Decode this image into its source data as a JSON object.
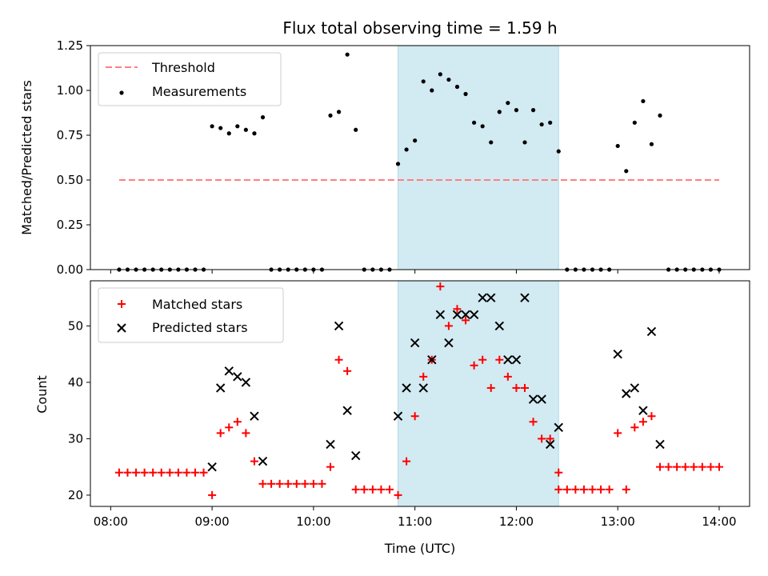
{
  "chart_data": [
    {
      "type": "scatter",
      "title": "Flux total observing time = 1.59 h",
      "xlabel": "",
      "ylabel": "Matched/Predicted stars",
      "ylim": [
        0,
        1.25
      ],
      "yticks": [
        "0.00",
        "0.25",
        "0.50",
        "0.75",
        "1.00",
        "1.25"
      ],
      "xticks": [
        "08:00",
        "09:00",
        "10:00",
        "11:00",
        "12:00",
        "13:00",
        "14:00"
      ],
      "x_range": [
        "07:48",
        "14:18"
      ],
      "highlight_span": [
        "10:50",
        "12:25"
      ],
      "highlight_color": "#add8e6",
      "legend_position": "upper left",
      "threshold": {
        "name": "Threshold",
        "value": 0.5,
        "x_start": "08:05",
        "x_end": "14:00",
        "color": "#ff7f7f"
      },
      "series": [
        {
          "name": "Measurements",
          "color": "#000000",
          "points": [
            [
              "08:05",
              0.0
            ],
            [
              "08:10",
              0.0
            ],
            [
              "08:15",
              0.0
            ],
            [
              "08:20",
              0.0
            ],
            [
              "08:25",
              0.0
            ],
            [
              "08:30",
              0.0
            ],
            [
              "08:35",
              0.0
            ],
            [
              "08:40",
              0.0
            ],
            [
              "08:45",
              0.0
            ],
            [
              "08:50",
              0.0
            ],
            [
              "08:55",
              0.0
            ],
            [
              "09:00",
              0.8
            ],
            [
              "09:05",
              0.79
            ],
            [
              "09:10",
              0.76
            ],
            [
              "09:15",
              0.8
            ],
            [
              "09:20",
              0.78
            ],
            [
              "09:25",
              0.76
            ],
            [
              "09:30",
              0.85
            ],
            [
              "09:35",
              0.0
            ],
            [
              "09:40",
              0.0
            ],
            [
              "09:45",
              0.0
            ],
            [
              "09:50",
              0.0
            ],
            [
              "09:55",
              0.0
            ],
            [
              "10:00",
              0.0
            ],
            [
              "10:05",
              0.0
            ],
            [
              "10:10",
              0.86
            ],
            [
              "10:15",
              0.88
            ],
            [
              "10:20",
              1.2
            ],
            [
              "10:25",
              0.78
            ],
            [
              "10:30",
              0.0
            ],
            [
              "10:35",
              0.0
            ],
            [
              "10:40",
              0.0
            ],
            [
              "10:45",
              0.0
            ],
            [
              "10:50",
              0.59
            ],
            [
              "10:55",
              0.67
            ],
            [
              "11:00",
              0.72
            ],
            [
              "11:05",
              1.05
            ],
            [
              "11:10",
              1.0
            ],
            [
              "11:15",
              1.09
            ],
            [
              "11:20",
              1.06
            ],
            [
              "11:25",
              1.02
            ],
            [
              "11:30",
              0.98
            ],
            [
              "11:35",
              0.82
            ],
            [
              "11:40",
              0.8
            ],
            [
              "11:45",
              0.71
            ],
            [
              "11:50",
              0.88
            ],
            [
              "11:55",
              0.93
            ],
            [
              "12:00",
              0.89
            ],
            [
              "12:05",
              0.71
            ],
            [
              "12:10",
              0.89
            ],
            [
              "12:15",
              0.81
            ],
            [
              "12:20",
              0.82
            ],
            [
              "12:25",
              0.66
            ],
            [
              "12:30",
              0.0
            ],
            [
              "12:35",
              0.0
            ],
            [
              "12:40",
              0.0
            ],
            [
              "12:45",
              0.0
            ],
            [
              "12:50",
              0.0
            ],
            [
              "12:55",
              0.0
            ],
            [
              "13:00",
              0.69
            ],
            [
              "13:05",
              0.55
            ],
            [
              "13:10",
              0.82
            ],
            [
              "13:15",
              0.94
            ],
            [
              "13:20",
              0.7
            ],
            [
              "13:25",
              0.86
            ],
            [
              "13:30",
              0.0
            ],
            [
              "13:35",
              0.0
            ],
            [
              "13:40",
              0.0
            ],
            [
              "13:45",
              0.0
            ],
            [
              "13:50",
              0.0
            ],
            [
              "13:55",
              0.0
            ],
            [
              "14:00",
              0.0
            ]
          ]
        }
      ]
    },
    {
      "type": "scatter",
      "title": "",
      "xlabel": "Time (UTC)",
      "ylabel": "Count",
      "ylim": [
        18,
        58
      ],
      "yticks": [
        "20",
        "30",
        "40",
        "50"
      ],
      "xticks": [
        "08:00",
        "09:00",
        "10:00",
        "11:00",
        "12:00",
        "13:00",
        "14:00"
      ],
      "x_range": [
        "07:48",
        "14:18"
      ],
      "highlight_span": [
        "10:50",
        "12:25"
      ],
      "highlight_color": "#add8e6",
      "legend_position": "upper left",
      "series": [
        {
          "name": "Matched stars",
          "marker": "plus",
          "color": "#ff0000",
          "points": [
            [
              "08:05",
              24
            ],
            [
              "08:10",
              24
            ],
            [
              "08:15",
              24
            ],
            [
              "08:20",
              24
            ],
            [
              "08:25",
              24
            ],
            [
              "08:30",
              24
            ],
            [
              "08:35",
              24
            ],
            [
              "08:40",
              24
            ],
            [
              "08:45",
              24
            ],
            [
              "08:50",
              24
            ],
            [
              "08:55",
              24
            ],
            [
              "09:00",
              20
            ],
            [
              "09:05",
              31
            ],
            [
              "09:10",
              32
            ],
            [
              "09:15",
              33
            ],
            [
              "09:20",
              31
            ],
            [
              "09:25",
              26
            ],
            [
              "09:30",
              22
            ],
            [
              "09:35",
              22
            ],
            [
              "09:40",
              22
            ],
            [
              "09:45",
              22
            ],
            [
              "09:50",
              22
            ],
            [
              "09:55",
              22
            ],
            [
              "10:00",
              22
            ],
            [
              "10:05",
              22
            ],
            [
              "10:10",
              25
            ],
            [
              "10:15",
              44
            ],
            [
              "10:20",
              42
            ],
            [
              "10:25",
              21
            ],
            [
              "10:30",
              21
            ],
            [
              "10:35",
              21
            ],
            [
              "10:40",
              21
            ],
            [
              "10:45",
              21
            ],
            [
              "10:50",
              20
            ],
            [
              "10:55",
              26
            ],
            [
              "11:00",
              34
            ],
            [
              "11:05",
              41
            ],
            [
              "11:10",
              44
            ],
            [
              "11:15",
              57
            ],
            [
              "11:20",
              50
            ],
            [
              "11:25",
              53
            ],
            [
              "11:30",
              51
            ],
            [
              "11:35",
              43
            ],
            [
              "11:40",
              44
            ],
            [
              "11:45",
              39
            ],
            [
              "11:50",
              44
            ],
            [
              "11:55",
              41
            ],
            [
              "12:00",
              39
            ],
            [
              "12:05",
              39
            ],
            [
              "12:10",
              33
            ],
            [
              "12:15",
              30
            ],
            [
              "12:20",
              30
            ],
            [
              "12:25",
              24
            ],
            [
              "12:25",
              21
            ],
            [
              "12:30",
              21
            ],
            [
              "12:35",
              21
            ],
            [
              "12:40",
              21
            ],
            [
              "12:45",
              21
            ],
            [
              "12:50",
              21
            ],
            [
              "12:55",
              21
            ],
            [
              "13:00",
              31
            ],
            [
              "13:05",
              21
            ],
            [
              "13:10",
              32
            ],
            [
              "13:15",
              33
            ],
            [
              "13:20",
              34
            ],
            [
              "13:25",
              25
            ],
            [
              "13:30",
              25
            ],
            [
              "13:35",
              25
            ],
            [
              "13:40",
              25
            ],
            [
              "13:45",
              25
            ],
            [
              "13:50",
              25
            ],
            [
              "13:55",
              25
            ],
            [
              "14:00",
              25
            ]
          ]
        },
        {
          "name": "Predicted stars",
          "marker": "x",
          "color": "#000000",
          "points": [
            [
              "09:00",
              25
            ],
            [
              "09:05",
              39
            ],
            [
              "09:10",
              42
            ],
            [
              "09:15",
              41
            ],
            [
              "09:20",
              40
            ],
            [
              "09:25",
              34
            ],
            [
              "09:30",
              26
            ],
            [
              "10:10",
              29
            ],
            [
              "10:15",
              50
            ],
            [
              "10:20",
              35
            ],
            [
              "10:25",
              27
            ],
            [
              "10:50",
              34
            ],
            [
              "10:55",
              39
            ],
            [
              "11:00",
              47
            ],
            [
              "11:05",
              39
            ],
            [
              "11:10",
              44
            ],
            [
              "11:15",
              52
            ],
            [
              "11:20",
              47
            ],
            [
              "11:25",
              52
            ],
            [
              "11:30",
              52
            ],
            [
              "11:35",
              52
            ],
            [
              "11:40",
              55
            ],
            [
              "11:45",
              55
            ],
            [
              "11:50",
              50
            ],
            [
              "11:55",
              44
            ],
            [
              "12:00",
              44
            ],
            [
              "12:05",
              55
            ],
            [
              "12:10",
              37
            ],
            [
              "12:15",
              37
            ],
            [
              "12:20",
              29
            ],
            [
              "12:25",
              32
            ],
            [
              "13:00",
              45
            ],
            [
              "13:05",
              38
            ],
            [
              "13:10",
              39
            ],
            [
              "13:15",
              35
            ],
            [
              "13:20",
              49
            ],
            [
              "13:25",
              29
            ]
          ]
        }
      ]
    }
  ]
}
